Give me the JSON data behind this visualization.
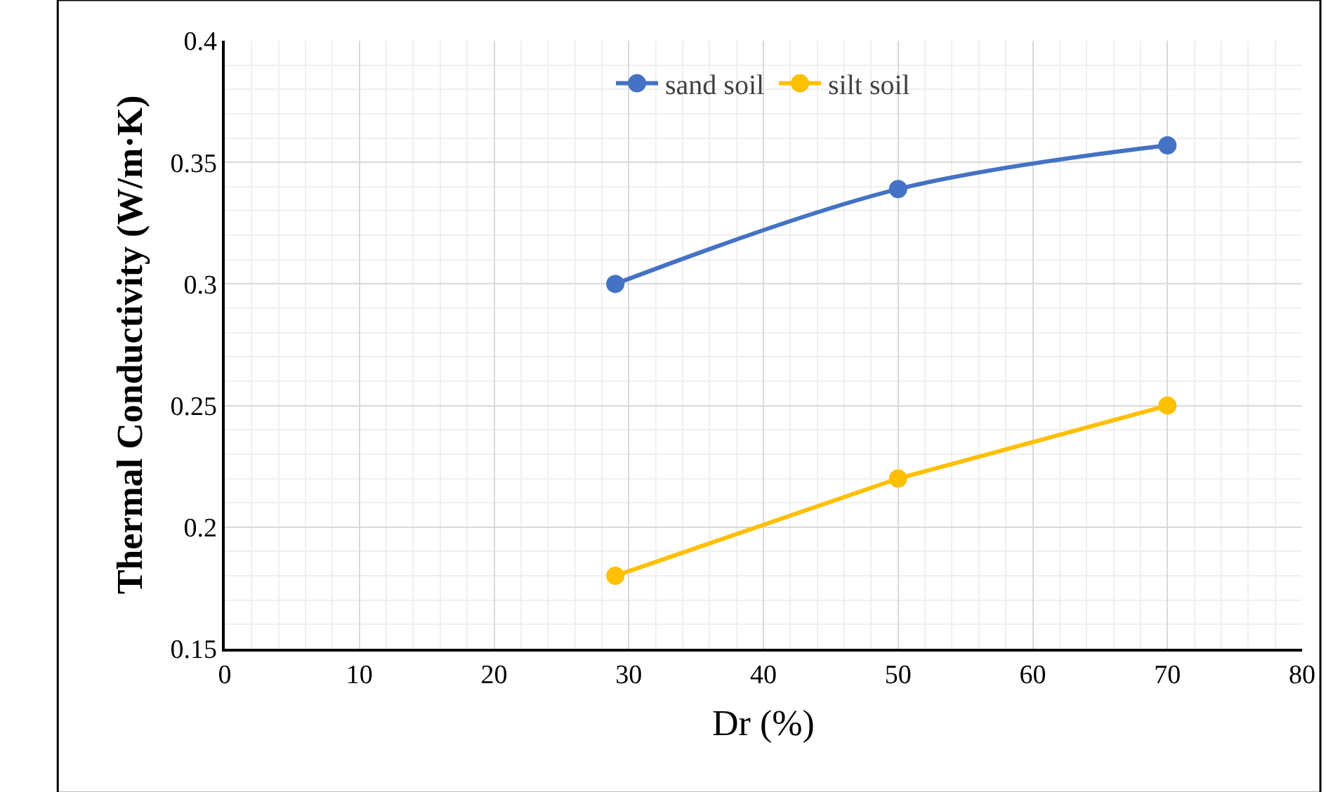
{
  "chart_data": {
    "type": "line",
    "xlabel": "Dr (%)",
    "ylabel": "Thermal Conductivity (W/m·K)",
    "x": [
      29,
      50,
      70
    ],
    "series": [
      {
        "name": "sand soil",
        "color": "#4472c4",
        "values": [
          0.3,
          0.339,
          0.357
        ]
      },
      {
        "name": "silt soil",
        "color": "#ffc000",
        "values": [
          0.18,
          0.22,
          0.25
        ]
      }
    ],
    "xlim": [
      0,
      80
    ],
    "xticks": [
      0,
      10,
      20,
      30,
      40,
      50,
      60,
      70,
      80
    ],
    "ylim": [
      0.15,
      0.4
    ],
    "yticks": [
      0.15,
      0.2,
      0.25,
      0.3,
      0.35,
      0.4
    ],
    "grid": true,
    "legend": "top",
    "marker": "circle",
    "line_style": "solid"
  }
}
